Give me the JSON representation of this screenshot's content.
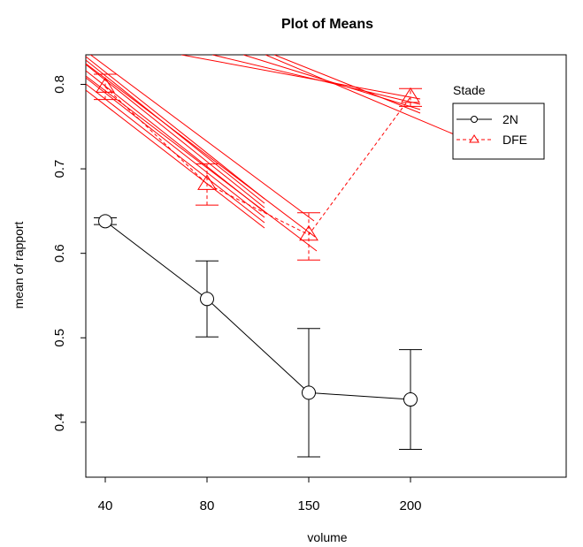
{
  "chart_data": {
    "type": "line",
    "title": "Plot of Means",
    "xlabel": "volume",
    "ylabel": "mean of rapport",
    "categories": [
      "40",
      "80",
      "150",
      "200"
    ],
    "ylim": [
      0.335,
      0.835
    ],
    "yticks": [
      0.4,
      0.5,
      0.6,
      0.7,
      0.8
    ],
    "grid": false,
    "legend": {
      "title": "Stade",
      "placement": "top-right"
    },
    "series": [
      {
        "name": "2N",
        "color": "#000000",
        "marker": "circle",
        "line": "solid",
        "values": [
          0.638,
          0.546,
          0.435,
          0.427
        ],
        "err_low": [
          0.634,
          0.501,
          0.359,
          0.368
        ],
        "err_high": [
          0.642,
          0.591,
          0.511,
          0.486
        ]
      },
      {
        "name": "DFE",
        "color": "#ff0000",
        "marker": "triangle",
        "line": "dashed",
        "values": [
          0.797,
          0.682,
          0.622,
          0.785
        ],
        "err_low": [
          0.782,
          0.657,
          0.592,
          0.774
        ],
        "err_high": [
          0.812,
          0.706,
          0.648,
          0.795
        ]
      }
    ]
  }
}
